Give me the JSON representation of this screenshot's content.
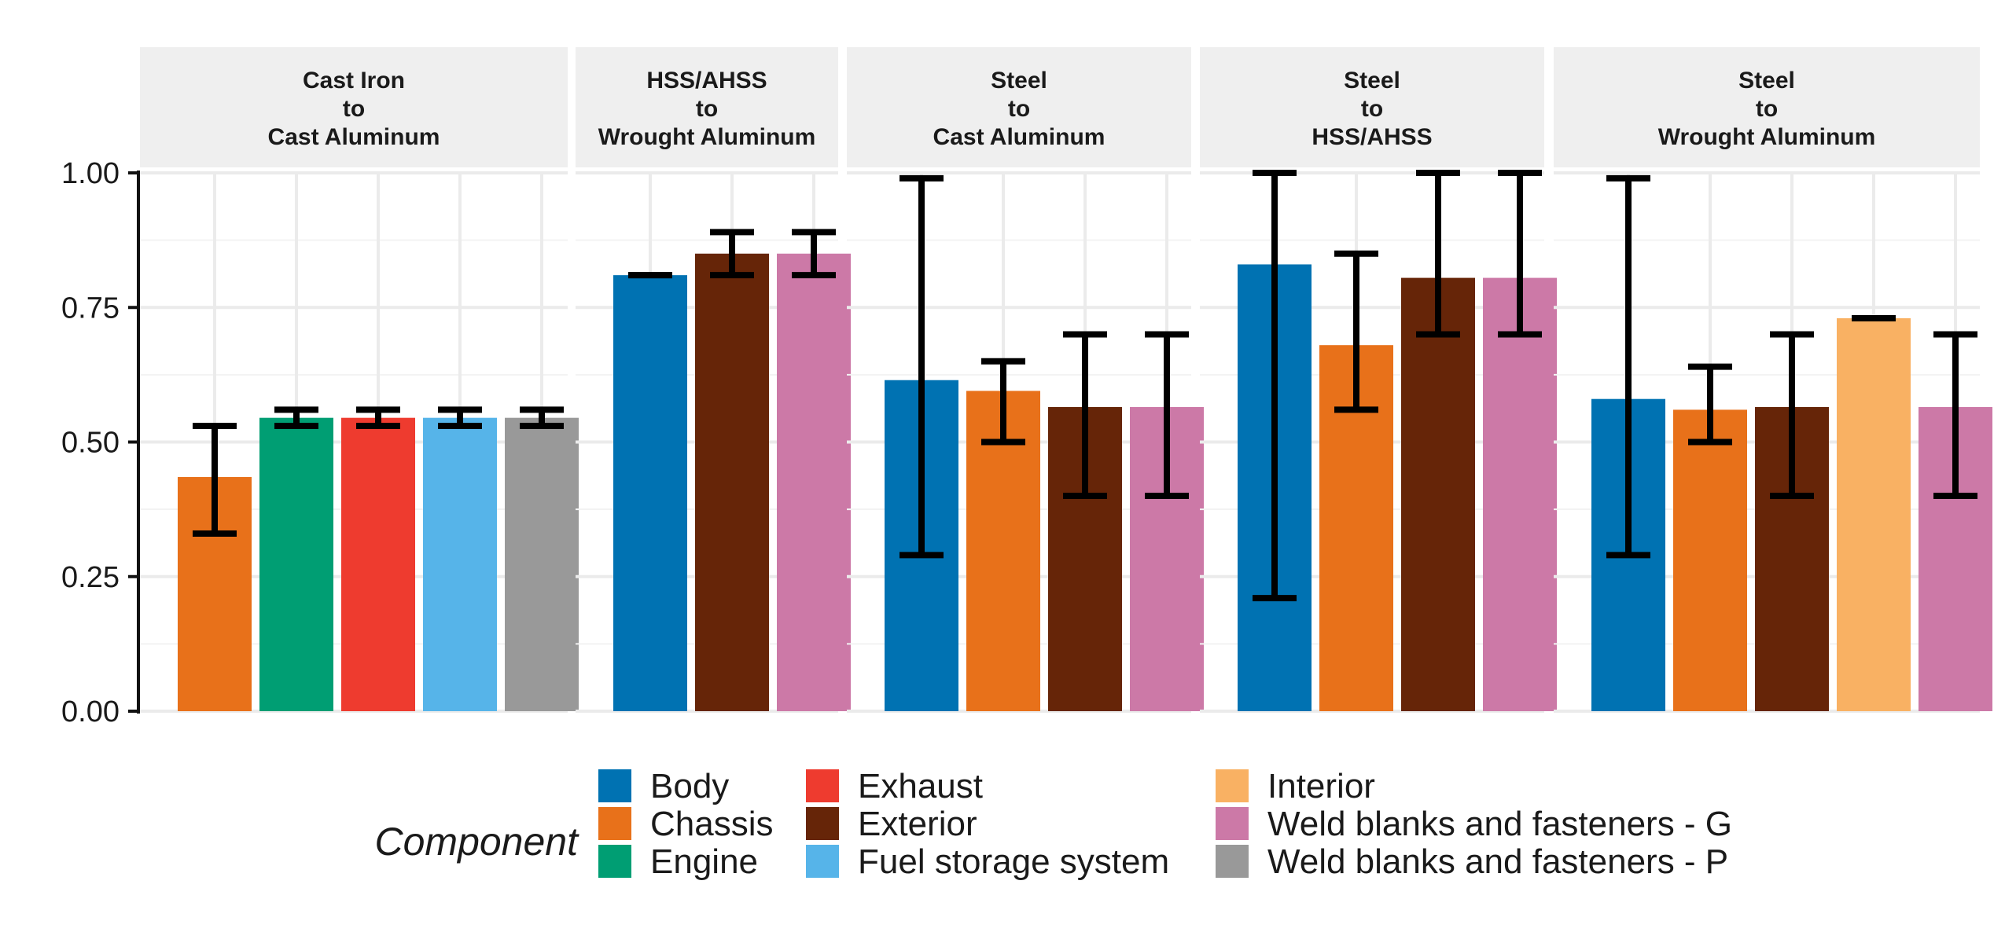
{
  "chart_data": {
    "type": "bar",
    "title": "",
    "xlabel": "",
    "ylabel": "",
    "ylim": [
      0,
      1
    ],
    "y_ticks": [
      "0.00",
      "0.25",
      "0.50",
      "0.75",
      "1.00"
    ],
    "y_tick_values": [
      0,
      0.25,
      0.5,
      0.75,
      1.0
    ],
    "grid": true,
    "legend_position": "bottom",
    "legend_title": "Component",
    "colors": {
      "Body": "#0072b2",
      "Chassis": "#e8711a",
      "Engine": "#009e73",
      "Exhaust": "#ee3b2f",
      "Exterior": "#662508",
      "Fuel storage system": "#56b4e9",
      "Interior": "#f9b163",
      "Weld blanks and fasteners - G": "#cc79a7",
      "Weld blanks and fasteners - P": "#999999"
    },
    "legend_columns": [
      [
        "Body",
        "Chassis",
        "Engine"
      ],
      [
        "Exhaust",
        "Exterior",
        "Fuel storage system"
      ],
      [
        "Interior",
        "Weld blanks and fasteners - G",
        "Weld blanks and fasteners - P"
      ]
    ],
    "facets": [
      {
        "strip": [
          "Cast Iron",
          "to",
          "Cast Aluminum"
        ],
        "bars": [
          {
            "component": "Chassis",
            "value": 0.435,
            "err_low": 0.33,
            "err_high": 0.53
          },
          {
            "component": "Engine",
            "value": 0.545,
            "err_low": 0.53,
            "err_high": 0.56
          },
          {
            "component": "Exhaust",
            "value": 0.545,
            "err_low": 0.53,
            "err_high": 0.56
          },
          {
            "component": "Fuel storage system",
            "value": 0.545,
            "err_low": 0.53,
            "err_high": 0.56
          },
          {
            "component": "Weld blanks and fasteners - P",
            "value": 0.545,
            "err_low": 0.53,
            "err_high": 0.56
          }
        ]
      },
      {
        "strip": [
          "HSS/AHSS",
          "to",
          "Wrought Aluminum"
        ],
        "bars": [
          {
            "component": "Body",
            "value": 0.81,
            "err_low": 0.81,
            "err_high": 0.81
          },
          {
            "component": "Exterior",
            "value": 0.85,
            "err_low": 0.81,
            "err_high": 0.89
          },
          {
            "component": "Weld blanks and fasteners - G",
            "value": 0.85,
            "err_low": 0.81,
            "err_high": 0.89
          }
        ]
      },
      {
        "strip": [
          "Steel",
          "to",
          "Cast Aluminum"
        ],
        "bars": [
          {
            "component": "Body",
            "value": 0.615,
            "err_low": 0.29,
            "err_high": 0.99
          },
          {
            "component": "Chassis",
            "value": 0.595,
            "err_low": 0.5,
            "err_high": 0.65
          },
          {
            "component": "Exterior",
            "value": 0.565,
            "err_low": 0.4,
            "err_high": 0.7
          },
          {
            "component": "Weld blanks and fasteners - G",
            "value": 0.565,
            "err_low": 0.4,
            "err_high": 0.7
          }
        ]
      },
      {
        "strip": [
          "Steel",
          "to",
          "HSS/AHSS"
        ],
        "bars": [
          {
            "component": "Body",
            "value": 0.83,
            "err_low": 0.21,
            "err_high": 1.0
          },
          {
            "component": "Chassis",
            "value": 0.68,
            "err_low": 0.56,
            "err_high": 0.85
          },
          {
            "component": "Exterior",
            "value": 0.805,
            "err_low": 0.7,
            "err_high": 1.0
          },
          {
            "component": "Weld blanks and fasteners - G",
            "value": 0.805,
            "err_low": 0.7,
            "err_high": 1.0
          }
        ]
      },
      {
        "strip": [
          "Steel",
          "to",
          "Wrought Aluminum"
        ],
        "bars": [
          {
            "component": "Body",
            "value": 0.58,
            "err_low": 0.29,
            "err_high": 0.99
          },
          {
            "component": "Chassis",
            "value": 0.56,
            "err_low": 0.5,
            "err_high": 0.64
          },
          {
            "component": "Exterior",
            "value": 0.565,
            "err_low": 0.4,
            "err_high": 0.7
          },
          {
            "component": "Interior",
            "value": 0.73,
            "err_low": 0.73,
            "err_high": 0.73
          },
          {
            "component": "Weld blanks and fasteners - G",
            "value": 0.565,
            "err_low": 0.4,
            "err_high": 0.7
          }
        ]
      }
    ]
  }
}
